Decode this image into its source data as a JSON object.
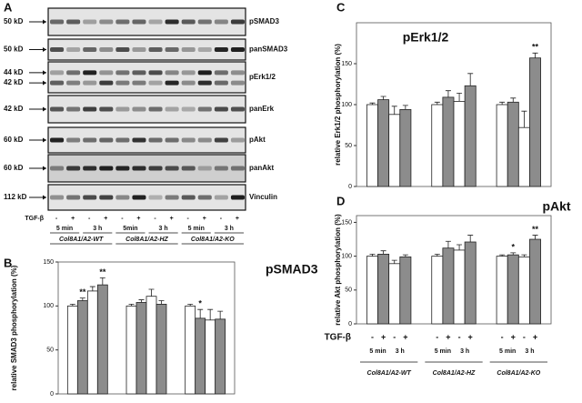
{
  "panel_a": {
    "panel": "A",
    "blots": [
      {
        "name": "pSMAD3",
        "markers": [
          "50 kD"
        ]
      },
      {
        "name": "panSMAD3",
        "markers": [
          "50 kD"
        ]
      },
      {
        "name": "pErk1/2",
        "markers": [
          "44 kD",
          "42 kD"
        ]
      },
      {
        "name": "panErk",
        "markers": [
          "42 kD"
        ]
      },
      {
        "name": "pAkt",
        "markers": [
          "60 kD"
        ]
      },
      {
        "name": "panAkt",
        "markers": [
          "60 kD"
        ]
      },
      {
        "name": "Vinculin",
        "markers": [
          "112 kD"
        ]
      }
    ],
    "treatment_label": "TGF-β",
    "treatment": [
      "-",
      "+",
      "-",
      "+",
      "-",
      "+",
      "-",
      "+",
      "-",
      "+",
      "-",
      "+"
    ],
    "time_labels": [
      "5 min",
      "3 h",
      "5min",
      "3 h",
      "5 min",
      "3 h"
    ],
    "groups": [
      "Col8A1/A2-WT",
      "Col8A1/A2-HZ",
      "Col8A1/A2-KO"
    ]
  },
  "chart_data": [
    {
      "type": "bar",
      "panel": "B",
      "title": "pSMAD3",
      "y_label": "relative SMAD3 phosphorylation (%)",
      "categories": [
        null,
        null,
        null
      ],
      "ylim": [
        0,
        150
      ],
      "yticks": [
        0,
        50,
        100,
        150
      ],
      "series": [
        {
          "color": "#ffffff",
          "values": [
            100,
            100,
            100
          ],
          "errors": [
            2,
            2,
            2
          ],
          "significance": [
            null,
            null,
            null
          ]
        },
        {
          "color": "#8c8c8c",
          "values": [
            106,
            104,
            86
          ],
          "errors": [
            3,
            3,
            10
          ],
          "significance": [
            "**",
            null,
            "*"
          ]
        },
        {
          "color": "#ffffff",
          "values": [
            117,
            111,
            84
          ],
          "errors": [
            5,
            8,
            12
          ],
          "significance": [
            null,
            null,
            null
          ]
        },
        {
          "color": "#8c8c8c",
          "values": [
            124,
            102,
            85
          ],
          "errors": [
            8,
            4,
            9
          ],
          "significance": [
            "**",
            null,
            null
          ]
        }
      ]
    },
    {
      "type": "bar",
      "panel": "C",
      "title": "pErk1/2",
      "y_label": "relative Erk1/2 phosphorylation (%)",
      "categories": [
        null,
        null,
        null
      ],
      "ylim": [
        0,
        200
      ],
      "yticks": [
        0,
        50,
        100,
        150
      ],
      "series": [
        {
          "color": "#ffffff",
          "values": [
            100,
            100,
            100
          ],
          "errors": [
            2,
            3,
            3
          ],
          "significance": [
            null,
            null,
            null
          ]
        },
        {
          "color": "#8c8c8c",
          "values": [
            106,
            109,
            103
          ],
          "errors": [
            4,
            8,
            5
          ],
          "significance": [
            null,
            null,
            null
          ]
        },
        {
          "color": "#ffffff",
          "values": [
            88,
            104,
            72
          ],
          "errors": [
            10,
            10,
            20
          ],
          "significance": [
            null,
            null,
            null
          ]
        },
        {
          "color": "#8c8c8c",
          "values": [
            94,
            123,
            157
          ],
          "errors": [
            5,
            15,
            6
          ],
          "significance": [
            null,
            null,
            "**"
          ]
        }
      ]
    },
    {
      "type": "bar",
      "panel": "D",
      "title": "pAkt",
      "y_label": "relative Akt phosphorylation (%)",
      "categories": [
        "Col8A1/A2-WT",
        "Col8A1/A2-HZ",
        "Col8A1/A2-KO"
      ],
      "ylim": [
        0,
        160
      ],
      "yticks": [
        0,
        50,
        100,
        150
      ],
      "treatment_label": "TGF-β",
      "treatment": [
        "-",
        "+",
        "-",
        "+"
      ],
      "time_labels": [
        "5 min",
        "3 h"
      ],
      "series": [
        {
          "color": "#ffffff",
          "values": [
            100,
            100,
            100
          ],
          "errors": [
            3,
            3,
            2
          ],
          "significance": [
            null,
            null,
            null
          ]
        },
        {
          "color": "#8c8c8c",
          "values": [
            103,
            112,
            102
          ],
          "errors": [
            5,
            10,
            3
          ],
          "significance": [
            null,
            null,
            "*"
          ]
        },
        {
          "color": "#ffffff",
          "values": [
            89,
            109,
            99
          ],
          "errors": [
            5,
            8,
            3
          ],
          "significance": [
            null,
            null,
            null
          ]
        },
        {
          "color": "#8c8c8c",
          "values": [
            99,
            121,
            125
          ],
          "errors": [
            3,
            10,
            6
          ],
          "significance": [
            null,
            null,
            "**"
          ]
        }
      ]
    }
  ]
}
